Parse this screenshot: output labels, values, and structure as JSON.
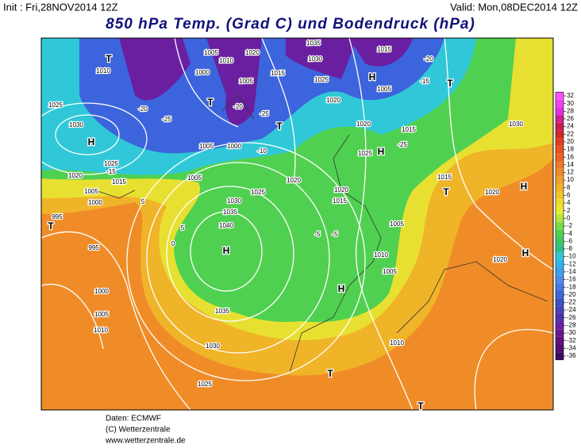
{
  "header": {
    "init": "Init : Fri,28NOV2014 12Z",
    "valid": "Valid: Mon,08DEC2014 12Z",
    "title": "850 hPa Temp. (Grad C) und Bodendruck (hPa)"
  },
  "color_scale": {
    "ticks": [
      32,
      30,
      28,
      26,
      24,
      22,
      20,
      18,
      16,
      14,
      12,
      10,
      8,
      6,
      4,
      2,
      0,
      -2,
      -4,
      -6,
      -8,
      -10,
      -12,
      -14,
      -16,
      -18,
      -20,
      -22,
      -24,
      -26,
      -28,
      -30,
      -32,
      -34,
      -36
    ],
    "colors": [
      "#ff50ff",
      "#f040f0",
      "#e030e0",
      "#d02090",
      "#c81e50",
      "#d22828",
      "#e03c1e",
      "#e8501e",
      "#ee6420",
      "#f07828",
      "#f08c28",
      "#f0a028",
      "#f0b428",
      "#f0c828",
      "#f0dc28",
      "#e8ec30",
      "#b4e63c",
      "#78dc46",
      "#50d050",
      "#3cc864",
      "#30c090",
      "#30c8d8",
      "#30b4e6",
      "#3ca0ec",
      "#4c8cec",
      "#4a78e4",
      "#3c64dc",
      "#3c50c8",
      "#4640b4",
      "#5030a8",
      "#6a1fa0",
      "#6a1890",
      "#601080",
      "#501070",
      "#400860"
    ]
  },
  "map": {
    "labels": [
      "1010",
      "1025",
      "1030",
      "H",
      "1025",
      "1020",
      "1015",
      "1005",
      "1000",
      "995",
      "T",
      "995",
      "1000",
      "1005",
      "1010",
      "1030",
      "1025",
      "1035",
      "H",
      "1040",
      "1035",
      "1030",
      "1025",
      "1020",
      "1005",
      "1000",
      "1005",
      "1000",
      "1005",
      "1010",
      "1005",
      "1020",
      "1035",
      "1030",
      "1025",
      "1015",
      "1020",
      "1020",
      "1025",
      "H",
      "1015",
      "1005",
      "H",
      "1015",
      "-20",
      "-15",
      "T",
      "1030",
      "1015",
      "1020",
      "T",
      "H",
      "1020",
      "H",
      "1005",
      "1010",
      "1005",
      "H",
      "1010",
      "T",
      "T",
      "1020",
      "1015",
      "-5",
      "-5",
      "-10",
      "-15",
      "-20",
      "-25",
      "5",
      "0",
      "5",
      "-20",
      "-25",
      "T",
      "T",
      "T",
      "-25"
    ]
  },
  "footer": {
    "source": "Daten: ECMWF",
    "copyright": "(C) Wetterzentrale",
    "url": "www.wetterzentrale.de"
  }
}
